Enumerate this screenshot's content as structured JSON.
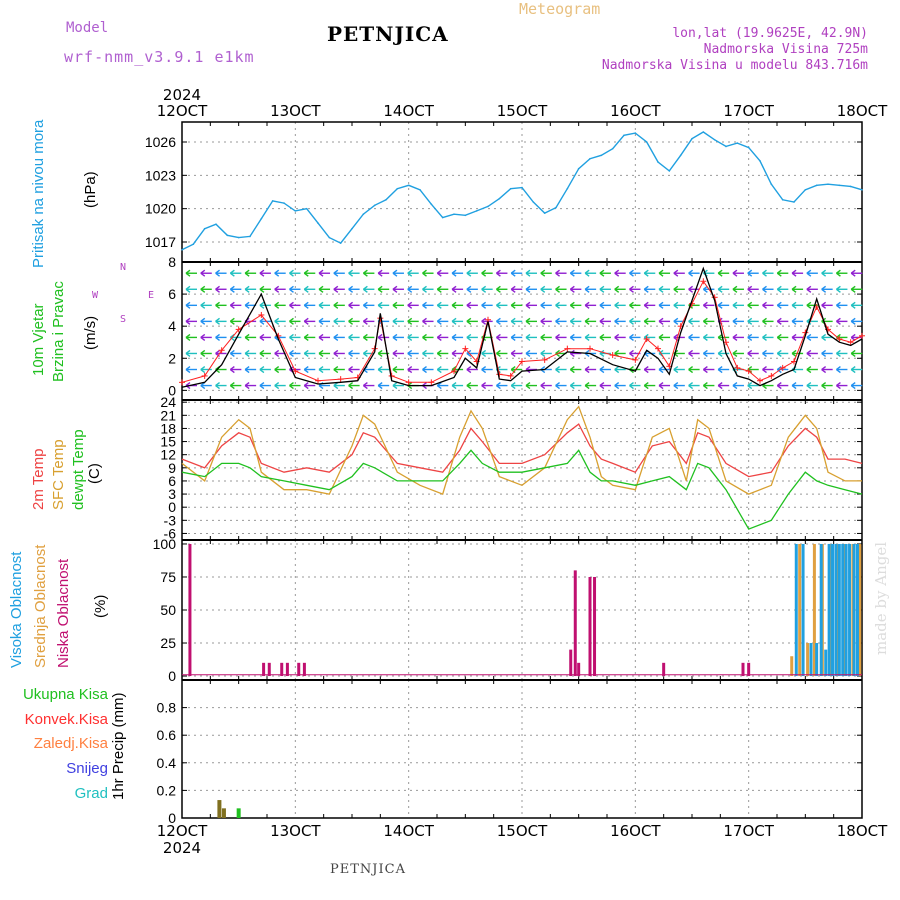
{
  "header": {
    "title": "PETNJICA",
    "subtitle": "Meteogram",
    "model_label": "Model",
    "model_name": "wrf-nmm_v3.9.1 e1km",
    "location_line1": "lon,lat (19.9625E, 42.9N)",
    "location_line2": "Nadmorska Visina 725m",
    "location_line3": "Nadmorska Visina u modelu 843.716m",
    "footer": "PETNJICA",
    "credit": "made by Angel"
  },
  "colors": {
    "pressure": "#20a0e0",
    "wind_speed": "#000000",
    "gust": "#ff2020",
    "temp2m": "#ee4444",
    "sfc_temp": "#d8a030",
    "dewpoint": "#20c020",
    "high_cloud": "#20a0e0",
    "mid_cloud": "#e0a040",
    "low_cloud": "#c01070",
    "total_precip": "#20c020",
    "conv_precip": "#ff3030",
    "frozen_precip": "#ff8040",
    "snow": "#4040e0",
    "hail": "#20c0c0",
    "precip_bar": "#807020"
  },
  "chart_data": [
    {
      "panel": "pressure",
      "type": "line",
      "ylabel_title": "Pritisak na nivou mora",
      "units": "(hPa)",
      "ylim": [
        1015.2,
        1027.8
      ],
      "y_ticks": [
        1017,
        1020,
        1023,
        1026
      ],
      "x_days": [
        12,
        18
      ],
      "grid": true,
      "x": [
        12.0,
        12.1,
        12.2,
        12.3,
        12.4,
        12.5,
        12.6,
        12.7,
        12.8,
        12.9,
        13.0,
        13.1,
        13.2,
        13.3,
        13.4,
        13.5,
        13.6,
        13.7,
        13.8,
        13.9,
        14.0,
        14.1,
        14.2,
        14.3,
        14.4,
        14.5,
        14.6,
        14.7,
        14.8,
        14.9,
        15.0,
        15.1,
        15.2,
        15.3,
        15.4,
        15.5,
        15.6,
        15.7,
        15.8,
        15.9,
        16.0,
        16.1,
        16.2,
        16.3,
        16.4,
        16.5,
        16.6,
        16.7,
        16.8,
        16.9,
        17.0,
        17.1,
        17.2,
        17.3,
        17.4,
        17.5,
        17.6,
        17.7,
        17.8,
        17.9,
        18.0
      ],
      "values": [
        1016.3,
        1016.8,
        1018.2,
        1018.6,
        1017.6,
        1017.4,
        1017.5,
        1019.1,
        1020.7,
        1020.5,
        1019.8,
        1020.0,
        1018.7,
        1017.4,
        1016.9,
        1018.2,
        1019.5,
        1020.3,
        1020.8,
        1021.8,
        1022.1,
        1021.7,
        1020.4,
        1019.2,
        1019.5,
        1019.4,
        1019.8,
        1020.2,
        1020.9,
        1021.8,
        1021.9,
        1020.6,
        1019.6,
        1020.1,
        1021.8,
        1023.6,
        1024.5,
        1024.8,
        1025.4,
        1026.6,
        1026.8,
        1026.0,
        1024.2,
        1023.4,
        1024.8,
        1026.3,
        1026.9,
        1026.2,
        1025.6,
        1025.9,
        1025.5,
        1024.3,
        1022.2,
        1020.8,
        1020.6,
        1021.7,
        1022.1,
        1022.2,
        1022.1,
        1022.0,
        1021.7
      ]
    },
    {
      "panel": "wind",
      "type": "line",
      "ylabel_title": "10m Vjetar",
      "ylabel_sub": "Brzina i Pravac",
      "units": "(m/s)",
      "compass": [
        "N",
        "E",
        "S",
        "W"
      ],
      "ylim": [
        -0.6,
        8
      ],
      "y_ticks": [
        0,
        2,
        4,
        6,
        8
      ],
      "x_days": [
        12,
        18
      ],
      "grid": true,
      "series": [
        {
          "name": "speed",
          "color": "#000000",
          "x": [
            12.0,
            12.2,
            12.35,
            12.5,
            12.7,
            12.85,
            13.0,
            13.2,
            13.4,
            13.55,
            13.7,
            13.75,
            13.85,
            14.0,
            14.2,
            14.4,
            14.5,
            14.6,
            14.7,
            14.8,
            14.9,
            15.0,
            15.2,
            15.4,
            15.6,
            15.8,
            16.0,
            16.1,
            16.2,
            16.3,
            16.4,
            16.5,
            16.6,
            16.7,
            16.8,
            16.9,
            17.0,
            17.1,
            17.2,
            17.3,
            17.4,
            17.5,
            17.6,
            17.7,
            17.8,
            17.9,
            18.0
          ],
          "values": [
            0.2,
            0.5,
            1.6,
            3.5,
            6.0,
            3.2,
            0.8,
            0.4,
            0.5,
            0.6,
            2.4,
            4.8,
            0.6,
            0.3,
            0.3,
            0.8,
            2.0,
            1.4,
            4.3,
            0.7,
            0.6,
            1.2,
            1.3,
            2.4,
            2.3,
            1.6,
            1.2,
            2.5,
            2.0,
            1.0,
            3.6,
            5.6,
            7.6,
            5.6,
            2.3,
            0.9,
            0.7,
            0.3,
            0.6,
            1.0,
            1.3,
            3.4,
            5.7,
            3.5,
            3.0,
            2.8,
            3.2
          ]
        },
        {
          "name": "gust",
          "color": "#ff2020",
          "x": [
            12.0,
            12.2,
            12.35,
            12.5,
            12.7,
            12.85,
            13.0,
            13.2,
            13.4,
            13.55,
            13.7,
            13.75,
            13.85,
            14.0,
            14.2,
            14.4,
            14.5,
            14.6,
            14.7,
            14.8,
            14.9,
            15.0,
            15.2,
            15.4,
            15.6,
            15.8,
            16.0,
            16.1,
            16.2,
            16.3,
            16.4,
            16.5,
            16.6,
            16.7,
            16.8,
            16.9,
            17.0,
            17.1,
            17.2,
            17.3,
            17.4,
            17.5,
            17.6,
            17.7,
            17.8,
            17.9,
            18.0
          ],
          "values": [
            0.5,
            0.9,
            2.5,
            3.8,
            4.7,
            3.4,
            1.2,
            0.6,
            0.7,
            0.8,
            2.6,
            4.5,
            0.9,
            0.5,
            0.5,
            1.2,
            2.6,
            1.8,
            4.4,
            1.0,
            0.9,
            1.8,
            1.9,
            2.6,
            2.6,
            2.2,
            1.9,
            3.2,
            2.6,
            1.5,
            4.0,
            5.4,
            6.8,
            5.8,
            3.0,
            1.4,
            1.2,
            0.6,
            0.9,
            1.4,
            1.8,
            3.6,
            5.2,
            3.8,
            3.2,
            3.0,
            3.4
          ]
        }
      ]
    },
    {
      "panel": "temperature",
      "type": "line",
      "labels": [
        "2m Temp",
        "SFC Temp",
        "dewpt Temp"
      ],
      "units": "(C)",
      "ylim": [
        -7.5,
        24.5
      ],
      "y_ticks": [
        -6,
        -3,
        0,
        3,
        6,
        9,
        12,
        15,
        18,
        21,
        24
      ],
      "x_days": [
        12,
        18
      ],
      "grid": true,
      "series": [
        {
          "name": "2m Temp",
          "color": "#ee4444",
          "x": [
            12.0,
            12.2,
            12.35,
            12.5,
            12.6,
            12.7,
            12.9,
            13.1,
            13.3,
            13.5,
            13.6,
            13.7,
            13.9,
            14.1,
            14.3,
            14.45,
            14.55,
            14.65,
            14.8,
            15.0,
            15.2,
            15.4,
            15.5,
            15.6,
            15.7,
            15.8,
            16.0,
            16.15,
            16.3,
            16.45,
            16.55,
            16.65,
            16.8,
            17.0,
            17.2,
            17.35,
            17.5,
            17.6,
            17.7,
            17.85,
            18.0
          ],
          "values": [
            11,
            9,
            14,
            17,
            16,
            10,
            8,
            9,
            8,
            12,
            17,
            16,
            10,
            9,
            8,
            13,
            18,
            15,
            10,
            10,
            12,
            17,
            19,
            14,
            11,
            10,
            8,
            14,
            15,
            10,
            17,
            16,
            10,
            7,
            8,
            14,
            18,
            16,
            11,
            11,
            10
          ]
        },
        {
          "name": "SFC Temp",
          "color": "#d8a030",
          "x": [
            12.0,
            12.2,
            12.35,
            12.5,
            12.6,
            12.7,
            12.9,
            13.1,
            13.3,
            13.5,
            13.6,
            13.7,
            13.9,
            14.1,
            14.3,
            14.45,
            14.55,
            14.65,
            14.8,
            15.0,
            15.2,
            15.4,
            15.5,
            15.6,
            15.7,
            15.8,
            16.0,
            16.15,
            16.3,
            16.45,
            16.55,
            16.65,
            16.8,
            17.0,
            17.2,
            17.35,
            17.5,
            17.6,
            17.7,
            17.85,
            18.0
          ],
          "values": [
            10,
            6,
            16,
            20,
            18,
            8,
            4,
            4,
            3,
            14,
            21,
            19,
            8,
            5,
            3,
            16,
            22,
            18,
            7,
            5,
            9,
            20,
            23,
            16,
            7,
            5,
            4,
            16,
            18,
            6,
            20,
            18,
            6,
            3,
            5,
            16,
            21,
            18,
            8,
            6,
            6
          ]
        },
        {
          "name": "dewpt Temp",
          "color": "#20c020",
          "x": [
            12.0,
            12.2,
            12.35,
            12.5,
            12.6,
            12.7,
            12.9,
            13.1,
            13.3,
            13.5,
            13.6,
            13.7,
            13.9,
            14.1,
            14.3,
            14.45,
            14.55,
            14.65,
            14.8,
            15.0,
            15.2,
            15.4,
            15.5,
            15.6,
            15.7,
            15.8,
            16.0,
            16.15,
            16.3,
            16.45,
            16.55,
            16.65,
            16.8,
            17.0,
            17.2,
            17.35,
            17.5,
            17.6,
            17.7,
            17.85,
            18.0
          ],
          "values": [
            8,
            7,
            10,
            10,
            9,
            7,
            6,
            5,
            4,
            7,
            10,
            9,
            6,
            6,
            6,
            10,
            13,
            10,
            8,
            8,
            9,
            10,
            13,
            8,
            6,
            6,
            5,
            6,
            7,
            4,
            10,
            9,
            4,
            -5,
            -3,
            3,
            8,
            6,
            5,
            4,
            3
          ]
        }
      ]
    },
    {
      "panel": "cloud",
      "type": "bar",
      "labels": [
        "Visoka Oblacnost",
        "Srednja Oblacnost",
        "Niska Oblacnost"
      ],
      "units": "(%)",
      "ylim": [
        -3,
        103
      ],
      "y_ticks": [
        0,
        25,
        50,
        75,
        100
      ],
      "x_days": [
        12,
        18
      ],
      "grid": true,
      "baseline": 1,
      "series": [
        {
          "name": "Niska Oblacnost",
          "color": "#c01070",
          "x": [
            12.07,
            12.72,
            12.77,
            12.88,
            12.93,
            13.03,
            13.08,
            15.5,
            15.43,
            15.47,
            15.6,
            15.64,
            16.25,
            16.95,
            17.0
          ],
          "values": [
            100,
            10,
            10,
            10,
            10,
            10,
            10,
            10,
            20,
            80,
            75,
            75,
            10,
            10,
            10
          ]
        },
        {
          "name": "Srednja Oblacnost",
          "color": "#e0a040",
          "x": [
            17.38,
            17.45,
            17.52,
            17.58,
            17.65,
            17.72,
            17.78,
            17.85,
            17.92,
            17.98
          ],
          "values": [
            15,
            100,
            25,
            100,
            100,
            100,
            100,
            100,
            100,
            100
          ]
        },
        {
          "name": "Visoka Oblacnost",
          "color": "#20a0e0",
          "x": [
            17.42,
            17.48,
            17.55,
            17.6,
            17.64,
            17.68,
            17.71,
            17.74,
            17.77,
            17.8,
            17.83,
            17.86,
            17.89,
            17.93,
            17.96
          ],
          "values": [
            100,
            100,
            25,
            25,
            100,
            20,
            100,
            100,
            100,
            100,
            100,
            100,
            100,
            100,
            100
          ]
        }
      ]
    },
    {
      "panel": "precip",
      "type": "bar",
      "labels": [
        "Ukupna Kisa",
        "Konvek.Kisa",
        "Zaledj.Kisa",
        "Snijeg",
        "Grad"
      ],
      "units": "1hr Precip (mm)",
      "ylim": [
        0,
        1.0
      ],
      "y_ticks": [
        0,
        0.2,
        0.4,
        0.6,
        0.8
      ],
      "x_days": [
        12,
        18
      ],
      "grid": true,
      "x": [
        12.33,
        12.37,
        12.5
      ],
      "values": [
        0.13,
        0.07,
        0.07
      ]
    }
  ],
  "axis": {
    "x_tick_labels": [
      "12OCT",
      "13OCT",
      "14OCT",
      "15OCT",
      "16OCT",
      "17OCT",
      "18OCT"
    ],
    "year": "2024"
  }
}
